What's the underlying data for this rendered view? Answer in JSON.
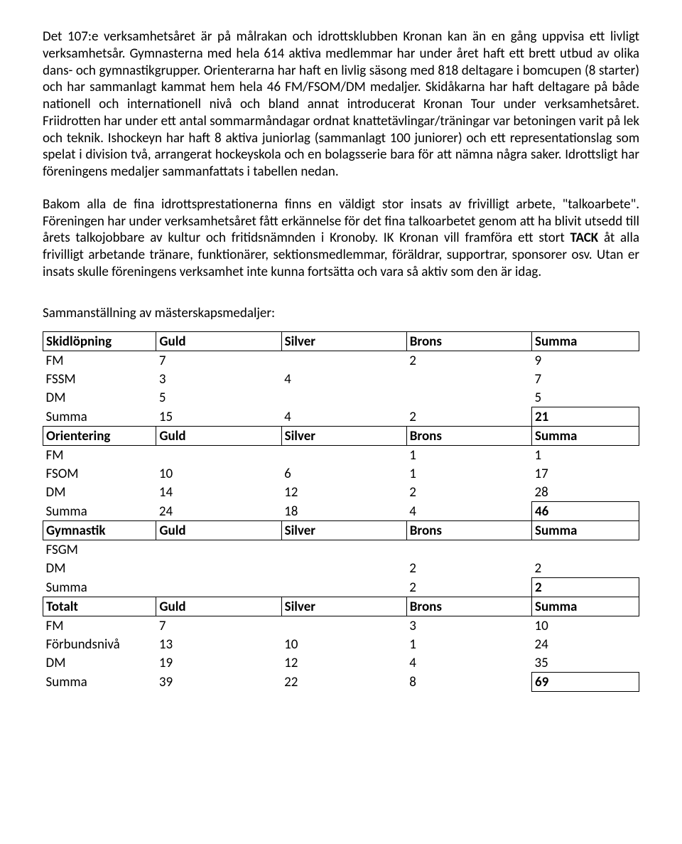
{
  "paragraphs": {
    "p1a": "Det 107:e verksamhetsåret är på målrakan och idrottsklubben Kronan kan än en gång uppvisa ett livligt verksamhetsår. Gymnasterna med hela 614 aktiva medlemmar har under året haft ett brett utbud av olika dans- och gymnastikgrupper. Orienterarna har haft en livlig säsong med 818 deltagare i bomcupen (8 starter) och har sammanlagt kammat hem hela 46 FM/FSOM/DM medaljer. Skidåkarna har haft deltagare på både nationell och internationell nivå och bland annat introducerat Kronan Tour under verksamhetsåret. Friidrotten har under ett antal sommarmåndagar ordnat knattetävlingar/träningar var betoningen varit på lek och teknik. Ishockeyn har haft 8 aktiva juniorlag (sammanlagt 100 juniorer) och ett representationslag som spelat i division två, arrangerat hockeyskola och en bolagsserie bara för att nämna några saker. Idrottsligt har föreningens medaljer sammanfattats i tabellen nedan.",
    "p2a": "Bakom alla de fina idrottsprestationerna finns en väldigt stor insats av frivilligt arbete, \"talkoarbete\". Föreningen har under verksamhetsåret fått erkännelse för det fina talkoarbetet genom att ha blivit utsedd till årets talkojobbare av kultur och fritidsnämnden i Kronoby. IK Kronan vill framföra ett stort ",
    "p2b": "TACK",
    "p2c": " åt alla frivilligt arbetande tränare, funktionärer, sektionsmedlemmar, föräldrar, supportrar, sponsorer osv. Utan er insats skulle föreningens verksamhet inte kunna fortsätta och vara så aktiv som den är idag."
  },
  "table_title": "Sammanställning av mästerskapsmedaljer:",
  "headers": {
    "guld": "Guld",
    "silver": "Silver",
    "brons": "Brons",
    "summa": "Summa"
  },
  "sections": {
    "skid": {
      "title": "Skidlöpning",
      "rows": [
        {
          "label": "FM",
          "g": "7",
          "s": "",
          "b": "2",
          "sum": "9"
        },
        {
          "label": "FSSM",
          "g": "3",
          "s": "4",
          "b": "",
          "sum": "7"
        },
        {
          "label": "DM",
          "g": "5",
          "s": "",
          "b": "",
          "sum": "5"
        }
      ],
      "total": {
        "label": "Summa",
        "g": "15",
        "s": "4",
        "b": "2",
        "sum": "21"
      }
    },
    "orient": {
      "title": "Orientering",
      "rows": [
        {
          "label": "FM",
          "g": "",
          "s": "",
          "b": "1",
          "sum": "1"
        },
        {
          "label": "FSOM",
          "g": "10",
          "s": "6",
          "b": "1",
          "sum": "17"
        },
        {
          "label": "DM",
          "g": "14",
          "s": "12",
          "b": "2",
          "sum": "28"
        }
      ],
      "total": {
        "label": "Summa",
        "g": "24",
        "s": "18",
        "b": "4",
        "sum": "46"
      }
    },
    "gym": {
      "title": "Gymnastik",
      "rows": [
        {
          "label": "FSGM",
          "g": "",
          "s": "",
          "b": "",
          "sum": ""
        },
        {
          "label": "DM",
          "g": "",
          "s": "",
          "b": "2",
          "sum": "2"
        }
      ],
      "total": {
        "label": "Summa",
        "g": "",
        "s": "",
        "b": "2",
        "sum": "2"
      }
    },
    "totalt": {
      "title": "Totalt",
      "rows": [
        {
          "label": "FM",
          "g": "7",
          "s": "",
          "b": "3",
          "sum": "10"
        },
        {
          "label": "Förbundsnivå",
          "g": "13",
          "s": "10",
          "b": "1",
          "sum": "24"
        },
        {
          "label": "DM",
          "g": "19",
          "s": "12",
          "b": "4",
          "sum": "35"
        }
      ],
      "total": {
        "label": "Summa",
        "g": "39",
        "s": "22",
        "b": "8",
        "sum": "69"
      }
    }
  }
}
